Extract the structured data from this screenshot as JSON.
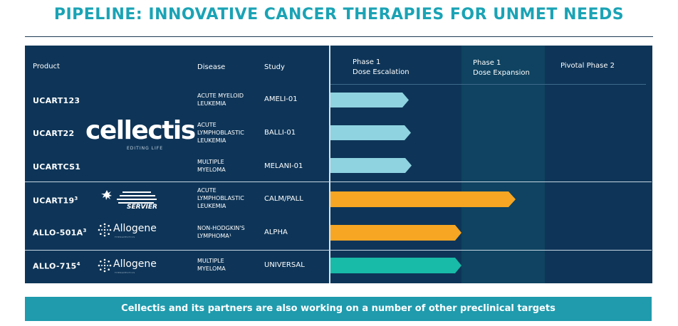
{
  "title": "PIPELINE: INNOVATIVE CANCER THERAPIES FOR UNMET NEEDS",
  "headers": {
    "product": "Product",
    "disease": "Disease",
    "study": "Study",
    "phase1_line1": "Phase 1",
    "phase1_line2": "Dose Escalation",
    "phase1b_line1": "Phase 1",
    "phase1b_line2": "Dose Expansion",
    "pivotal": "Pivotal Phase 2"
  },
  "rows": [
    {
      "product": "UCART123",
      "sup": "",
      "disease_l1": "ACUTE MYELOID",
      "disease_l2": "LEUKEMIA",
      "disease_l3": "",
      "study": "AMELI-01",
      "progress_color": "#8fd3e0"
    },
    {
      "product": "UCART22",
      "sup": "",
      "disease_l1": "ACUTE",
      "disease_l2": "LYMPHOBLASTIC",
      "disease_l3": "LEUKEMIA",
      "study": "BALLI-01",
      "progress_color": "#8fd3e0"
    },
    {
      "product": "UCARTCS1",
      "sup": "",
      "disease_l1": "MULTIPLE",
      "disease_l2": "MYELOMA",
      "disease_l3": "",
      "study": "MELANI-01",
      "progress_color": "#8fd3e0"
    },
    {
      "product": "UCART19",
      "sup": "3",
      "disease_l1": "ACUTE",
      "disease_l2": "LYMPHOBLASTIC",
      "disease_l3": "LEUKEMIA",
      "study": "CALM/PALL",
      "progress_color": "#f6a623"
    },
    {
      "product": "ALLO-501A",
      "sup": "3",
      "disease_l1": "NON-HODGKIN'S",
      "disease_l2": "LYMPHOMA¹",
      "disease_l3": "",
      "study": "ALPHA",
      "progress_color": "#f6a623"
    },
    {
      "product": "ALLO-715",
      "sup": "4",
      "disease_l1": "MULTIPLE",
      "disease_l2": "MYELOMA",
      "disease_l3": "",
      "study": "UNIVERSAL",
      "progress_color": "#17bba8"
    }
  ],
  "logos": {
    "cellectis": "cellectis",
    "cellectis_tag": "EDITING LIFE",
    "servier": "SERVIER",
    "allogene": "Allogene",
    "allogene_tag": "THERAPEUTICS"
  },
  "footer": "Cellectis and its partners are also working on a number of other preclinical targets"
}
